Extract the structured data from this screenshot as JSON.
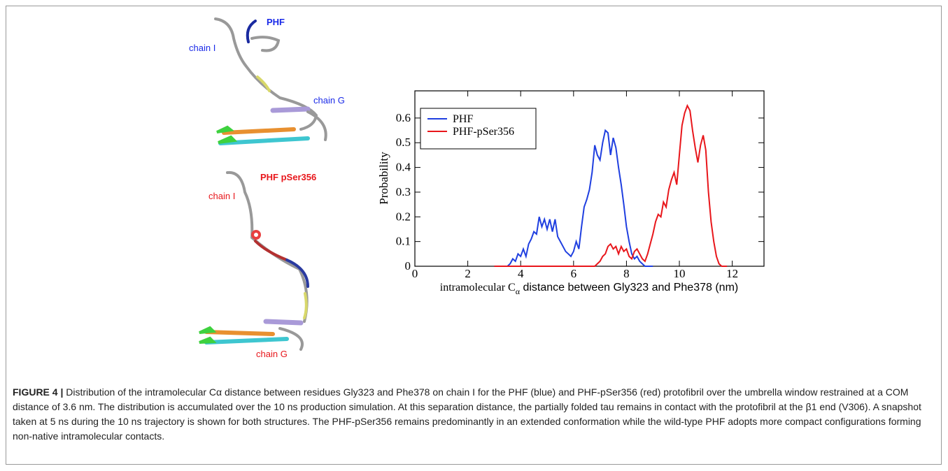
{
  "panels": {
    "top_title": "PHF",
    "top_chain_i": "chain I",
    "top_chain_g": "chain G",
    "bottom_title": "PHF pSer356",
    "bottom_chain_i": "chain I",
    "bottom_chain_g": "chain G"
  },
  "chart_data": {
    "type": "line",
    "ylabel": "Probability",
    "xlabel": [
      "intramolecular C",
      "α",
      " distance between Gly323 and Phe378 (nm)"
    ],
    "xlim": [
      0,
      13.2
    ],
    "ylim": [
      0,
      0.71
    ],
    "xticks": [
      0,
      2,
      4,
      6,
      8,
      10,
      12
    ],
    "yticks": [
      0,
      0.1,
      0.2,
      0.3,
      0.4,
      0.5,
      0.6
    ],
    "legend": "upper left",
    "series": [
      {
        "name": "PHF",
        "color": "#1f3fe0",
        "x": [
          3.0,
          3.5,
          3.6,
          3.7,
          3.8,
          3.9,
          4.0,
          4.1,
          4.2,
          4.3,
          4.4,
          4.5,
          4.6,
          4.7,
          4.8,
          4.9,
          5.0,
          5.1,
          5.2,
          5.3,
          5.4,
          5.5,
          5.6,
          5.7,
          5.8,
          5.9,
          6.0,
          6.1,
          6.2,
          6.3,
          6.4,
          6.5,
          6.6,
          6.7,
          6.8,
          6.9,
          7.0,
          7.1,
          7.2,
          7.3,
          7.4,
          7.5,
          7.6,
          7.7,
          7.8,
          7.9,
          8.0,
          8.1,
          8.2,
          8.3,
          8.4,
          8.5,
          8.6,
          8.7,
          9.0
        ],
        "values": [
          0,
          0,
          0.01,
          0.03,
          0.02,
          0.05,
          0.04,
          0.07,
          0.04,
          0.09,
          0.11,
          0.14,
          0.13,
          0.2,
          0.16,
          0.19,
          0.15,
          0.19,
          0.14,
          0.19,
          0.12,
          0.1,
          0.08,
          0.06,
          0.05,
          0.04,
          0.06,
          0.1,
          0.07,
          0.16,
          0.24,
          0.27,
          0.31,
          0.38,
          0.49,
          0.45,
          0.43,
          0.5,
          0.55,
          0.54,
          0.45,
          0.52,
          0.48,
          0.4,
          0.33,
          0.25,
          0.16,
          0.1,
          0.05,
          0.03,
          0.04,
          0.02,
          0.01,
          0,
          0
        ]
      },
      {
        "name": "PHF-pSer356",
        "color": "#e8161b",
        "x": [
          3.0,
          6.8,
          6.9,
          7.0,
          7.1,
          7.2,
          7.3,
          7.4,
          7.5,
          7.6,
          7.7,
          7.8,
          7.9,
          8.0,
          8.1,
          8.2,
          8.3,
          8.4,
          8.5,
          8.6,
          8.7,
          8.8,
          8.9,
          9.0,
          9.1,
          9.2,
          9.3,
          9.4,
          9.5,
          9.6,
          9.7,
          9.8,
          9.9,
          10.0,
          10.1,
          10.2,
          10.3,
          10.4,
          10.5,
          10.6,
          10.7,
          10.8,
          10.9,
          11.0,
          11.1,
          11.2,
          11.3,
          11.4,
          11.5,
          11.6,
          11.8
        ],
        "values": [
          0,
          0,
          0.01,
          0.02,
          0.04,
          0.05,
          0.08,
          0.09,
          0.07,
          0.08,
          0.05,
          0.08,
          0.06,
          0.07,
          0.04,
          0.03,
          0.06,
          0.07,
          0.05,
          0.03,
          0.02,
          0.05,
          0.09,
          0.13,
          0.18,
          0.21,
          0.2,
          0.26,
          0.24,
          0.31,
          0.35,
          0.38,
          0.33,
          0.45,
          0.57,
          0.62,
          0.65,
          0.63,
          0.55,
          0.48,
          0.42,
          0.49,
          0.53,
          0.47,
          0.3,
          0.18,
          0.1,
          0.04,
          0.01,
          0,
          0
        ]
      }
    ]
  },
  "caption": {
    "label": "FIGURE 4 |",
    "text": "Distribution of the intramolecular Cα distance between residues Gly323 and Phe378 on chain I for the PHF (blue) and PHF-pSer356 (red) protofibril over the umbrella window restrained at a COM distance of 3.6 nm. The distribution is accumulated over the 10 ns production simulation. At this separation distance, the partially folded tau remains in contact with the protofibril at the β1 end (V306). A snapshot taken at 5 ns during the 10 ns trajectory is shown for both structures. The PHF-pSer356 remains predominantly in an extended conformation while the wild-type PHF adopts more compact configurations forming non-native intramolecular contacts."
  }
}
